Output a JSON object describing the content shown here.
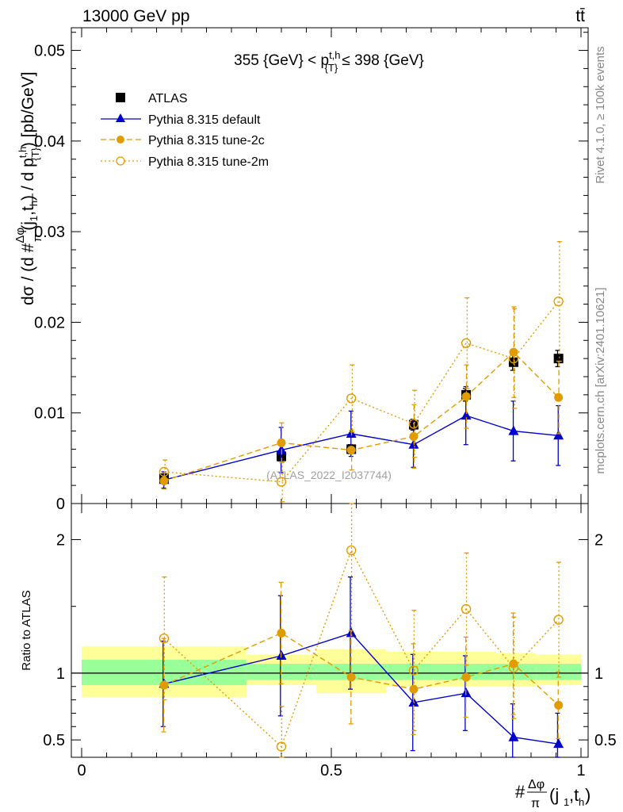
{
  "header": {
    "energy_label": "13000 GeV pp",
    "process_label": "tt̄"
  },
  "side_labels": {
    "rivet": "Rivet 4.1.0, ≥ 100k events",
    "mcplots": "mcplots.cern.ch [arXiv:2401.10621]"
  },
  "watermark": "(ATLAS_2022_I2037744)",
  "chart_data": [
    {
      "type": "scatter",
      "panel": "main",
      "title": "355 {GeV} < p_{T}^{t,h} ≤ 398 {GeV}",
      "ylabel": "dσ / (d #Δφ/π(j1,th) / d p_{T}^{t,h}) [pb/GeV]",
      "xlim": [
        0,
        1
      ],
      "ylim": [
        0,
        0.0525
      ],
      "yticks": [
        0,
        0.01,
        0.02,
        0.03,
        0.04,
        0.05
      ],
      "ytick_labels": [
        "0",
        "0.01",
        "0.02",
        "0.03",
        "0.04",
        "0.05"
      ],
      "x": [
        0.165,
        0.4,
        0.54,
        0.665,
        0.77,
        0.865,
        0.955
      ],
      "series": [
        {
          "name": "ATLAS",
          "color": "#000000",
          "marker": "square",
          "values": [
            0.0028,
            0.0052,
            0.006,
            0.0087,
            0.012,
            0.0156,
            0.016
          ],
          "err": [
            0.0004,
            0.0005,
            0.0005,
            0.0006,
            0.0007,
            0.0009,
            0.0009
          ]
        },
        {
          "name": "Pythia 8.315 default",
          "color": "#0000cc",
          "marker": "triangle",
          "dash": "",
          "values": [
            0.0026,
            0.0059,
            0.0077,
            0.0065,
            0.0097,
            0.008,
            0.0075
          ],
          "err": [
            0.0009,
            0.0025,
            0.0025,
            0.0025,
            0.0032,
            0.0033,
            0.0033
          ]
        },
        {
          "name": "Pythia 8.315 tune-2c",
          "color": "#e09b00",
          "marker": "circle",
          "dash": "7,4",
          "values": [
            0.0025,
            0.0067,
            0.0059,
            0.0074,
            0.0118,
            0.0167,
            0.0117
          ],
          "err": [
            0.0009,
            0.0022,
            0.0022,
            0.0035,
            0.0035,
            0.005,
            0.004
          ]
        },
        {
          "name": "Pythia 8.315 tune-2m",
          "color": "#e09b00",
          "marker": "open-circle",
          "dash": "2,3",
          "values": [
            0.0035,
            0.0024,
            0.0116,
            0.0088,
            0.0177,
            0.016,
            0.0223
          ],
          "err": [
            0.0013,
            0.0022,
            0.0037,
            0.0037,
            0.005,
            0.0055,
            0.0066
          ]
        }
      ]
    },
    {
      "type": "scatter",
      "panel": "ratio",
      "ylabel": "Ratio to ATLAS",
      "xlabel": "#Δφ/π(j1,th)",
      "xlim": [
        0,
        1
      ],
      "ylim": [
        0.37,
        2.27
      ],
      "yticks": [
        0.5,
        1,
        2
      ],
      "ytick_labels": [
        "0.5",
        "1",
        "2"
      ],
      "xticks": [
        0,
        0.5,
        1
      ],
      "xtick_labels": [
        "0",
        "0.5",
        "1"
      ],
      "bins": [
        {
          "lo": 0.0,
          "hi": 0.33,
          "green": [
            0.91,
            1.1
          ],
          "yellow": [
            0.82,
            1.2
          ]
        },
        {
          "lo": 0.33,
          "hi": 0.47,
          "green": [
            0.95,
            1.07
          ],
          "yellow": [
            0.91,
            1.14
          ]
        },
        {
          "lo": 0.47,
          "hi": 0.61,
          "green": [
            0.95,
            1.07
          ],
          "yellow": [
            0.85,
            1.18
          ]
        },
        {
          "lo": 0.61,
          "hi": 0.83,
          "green": [
            0.95,
            1.07
          ],
          "yellow": [
            0.9,
            1.16
          ]
        },
        {
          "lo": 0.83,
          "hi": 0.91,
          "green": [
            0.95,
            1.07
          ],
          "yellow": [
            0.9,
            1.15
          ]
        },
        {
          "lo": 0.91,
          "hi": 1.0,
          "green": [
            0.95,
            1.07
          ],
          "yellow": [
            0.91,
            1.14
          ]
        }
      ],
      "x": [
        0.165,
        0.4,
        0.54,
        0.665,
        0.77,
        0.865,
        0.955
      ],
      "series": [
        {
          "name": "Pythia 8.315 default",
          "color": "#0000cc",
          "marker": "triangle",
          "dash": "",
          "values": [
            0.92,
            1.13,
            1.3,
            0.78,
            0.85,
            0.52,
            0.47
          ],
          "err": [
            0.32,
            0.45,
            0.42,
            0.36,
            0.28,
            0.25,
            0.23
          ]
        },
        {
          "name": "Pythia 8.315 tune-2c",
          "color": "#e09b00",
          "marker": "circle",
          "dash": "7,4",
          "values": [
            0.91,
            1.3,
            0.97,
            0.88,
            0.97,
            1.07,
            0.76
          ],
          "err": [
            0.35,
            0.38,
            0.35,
            0.34,
            0.3,
            0.38,
            0.25
          ]
        },
        {
          "name": "Pythia 8.315 tune-2m",
          "color": "#e09b00",
          "marker": "open-circle",
          "dash": "2,3",
          "values": [
            1.26,
            0.45,
            1.92,
            1.02,
            1.48,
            1.04,
            1.4
          ],
          "err": [
            0.46,
            0.3,
            0.65,
            0.45,
            0.42,
            0.38,
            0.43
          ]
        }
      ]
    }
  ]
}
